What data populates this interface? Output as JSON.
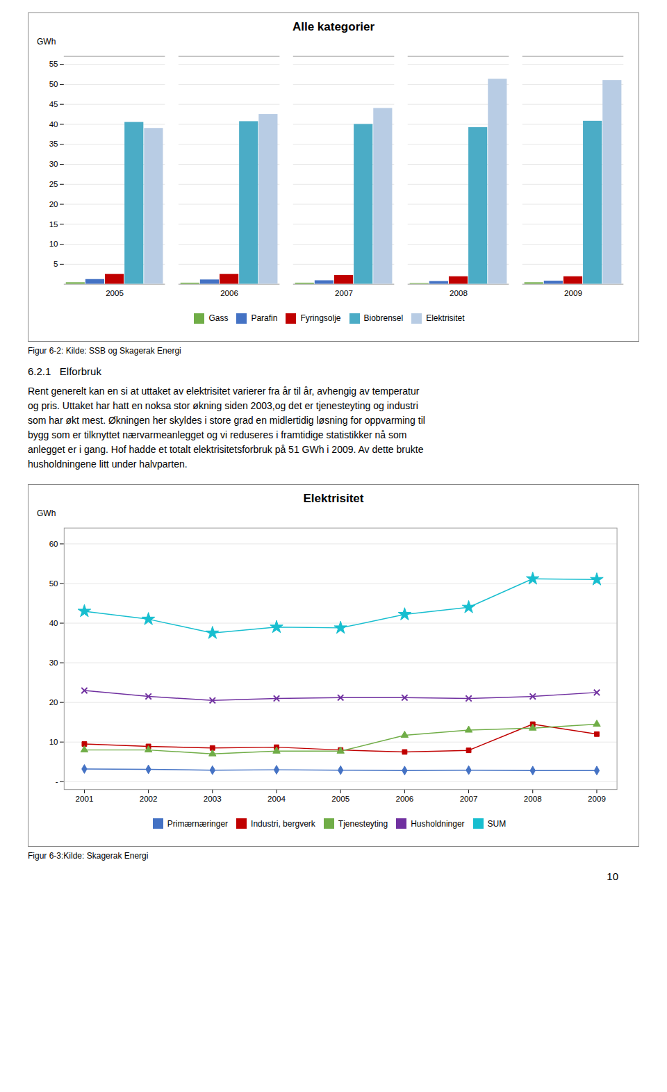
{
  "section_title": "6.2.1   Elforbruk",
  "paragraph": "Rent generelt kan en si at uttaket av elektrisitet varierer fra år til år, avhengig av temperatur\nog pris. Uttaket har hatt en noksa stor økning siden 2003,og det er tjenesteyting og industri\nsom har økt mest. Økningen her skyldes i store grad en midlertidig løsning for oppvarming til\nbygg som er tilknyttet nærvarmeanlegget og vi reduseres i framtidige statistikker nå som\nanlegget er i gang. Hof hadde et totalt elektrisitetsforbruk på 51 GWh i 2009. Av dette brukte\nhusholdningene litt under halvparten.",
  "page_number": "10",
  "chart_data": [
    {
      "type": "bar",
      "title": "Alle kategorier",
      "ylabel": "GWh",
      "caption": "Figur 6-2: Kilde: SSB og Skagerak Energi",
      "categories": [
        2005,
        2006,
        2007,
        2008,
        2009
      ],
      "series": [
        {
          "name": "Gass",
          "color": "#70ad47",
          "values": [
            0.4,
            0.3,
            0.3,
            0.2,
            0.4
          ]
        },
        {
          "name": "Parafin",
          "color": "#4472c4",
          "values": [
            1.2,
            1.1,
            0.9,
            0.7,
            0.8
          ]
        },
        {
          "name": "Fyringsolje",
          "color": "#c00000",
          "values": [
            2.5,
            2.5,
            2.2,
            1.9,
            1.9
          ]
        },
        {
          "name": "Biobrensel",
          "color": "#4bacc6",
          "values": [
            40.5,
            40.7,
            40.0,
            39.2,
            40.8
          ]
        },
        {
          "name": "Elektrisitet",
          "color": "#b8cce4",
          "values": [
            39.0,
            42.5,
            44.0,
            51.3,
            51.0
          ]
        }
      ],
      "ylim": [
        0,
        57
      ],
      "yticks": [
        5,
        10,
        15,
        20,
        25,
        30,
        35,
        40,
        45,
        50,
        55
      ],
      "grid": true,
      "legend": "bottom"
    },
    {
      "type": "line",
      "title": "Elektrisitet",
      "ylabel": "GWh",
      "caption": "Figur 6-3:Kilde: Skagerak Energi",
      "categories": [
        2001,
        2002,
        2003,
        2004,
        2005,
        2006,
        2007,
        2008,
        2009
      ],
      "series": [
        {
          "name": "Primærnæringer",
          "color": "#4472c4",
          "marker": "diamond",
          "values": [
            3.2,
            3.1,
            2.9,
            3.0,
            2.9,
            2.8,
            2.9,
            2.8,
            2.8
          ]
        },
        {
          "name": "Industri, bergverk",
          "color": "#c00000",
          "marker": "square",
          "values": [
            9.5,
            8.9,
            8.5,
            8.7,
            8.0,
            7.5,
            7.9,
            14.5,
            12.0
          ]
        },
        {
          "name": "Tjenesteyting",
          "color": "#70ad47",
          "marker": "triangle",
          "values": [
            8.0,
            8.0,
            7.0,
            7.7,
            7.7,
            11.7,
            13.0,
            13.5,
            14.5
          ]
        },
        {
          "name": "Husholdninger",
          "color": "#7030a0",
          "marker": "times",
          "values": [
            23.0,
            21.5,
            20.5,
            21.0,
            21.2,
            21.2,
            21.0,
            21.5,
            22.5
          ]
        },
        {
          "name": "SUM",
          "color": "#17becf",
          "marker": "star",
          "values": [
            43.0,
            41.0,
            37.5,
            39.0,
            38.8,
            42.2,
            44.0,
            51.2,
            51.0
          ]
        }
      ],
      "ylim": [
        -2,
        64
      ],
      "yticks": [
        {
          "value": 0,
          "label": "-"
        },
        10,
        20,
        30,
        40,
        50,
        60
      ],
      "grid": true,
      "legend": "bottom"
    }
  ]
}
